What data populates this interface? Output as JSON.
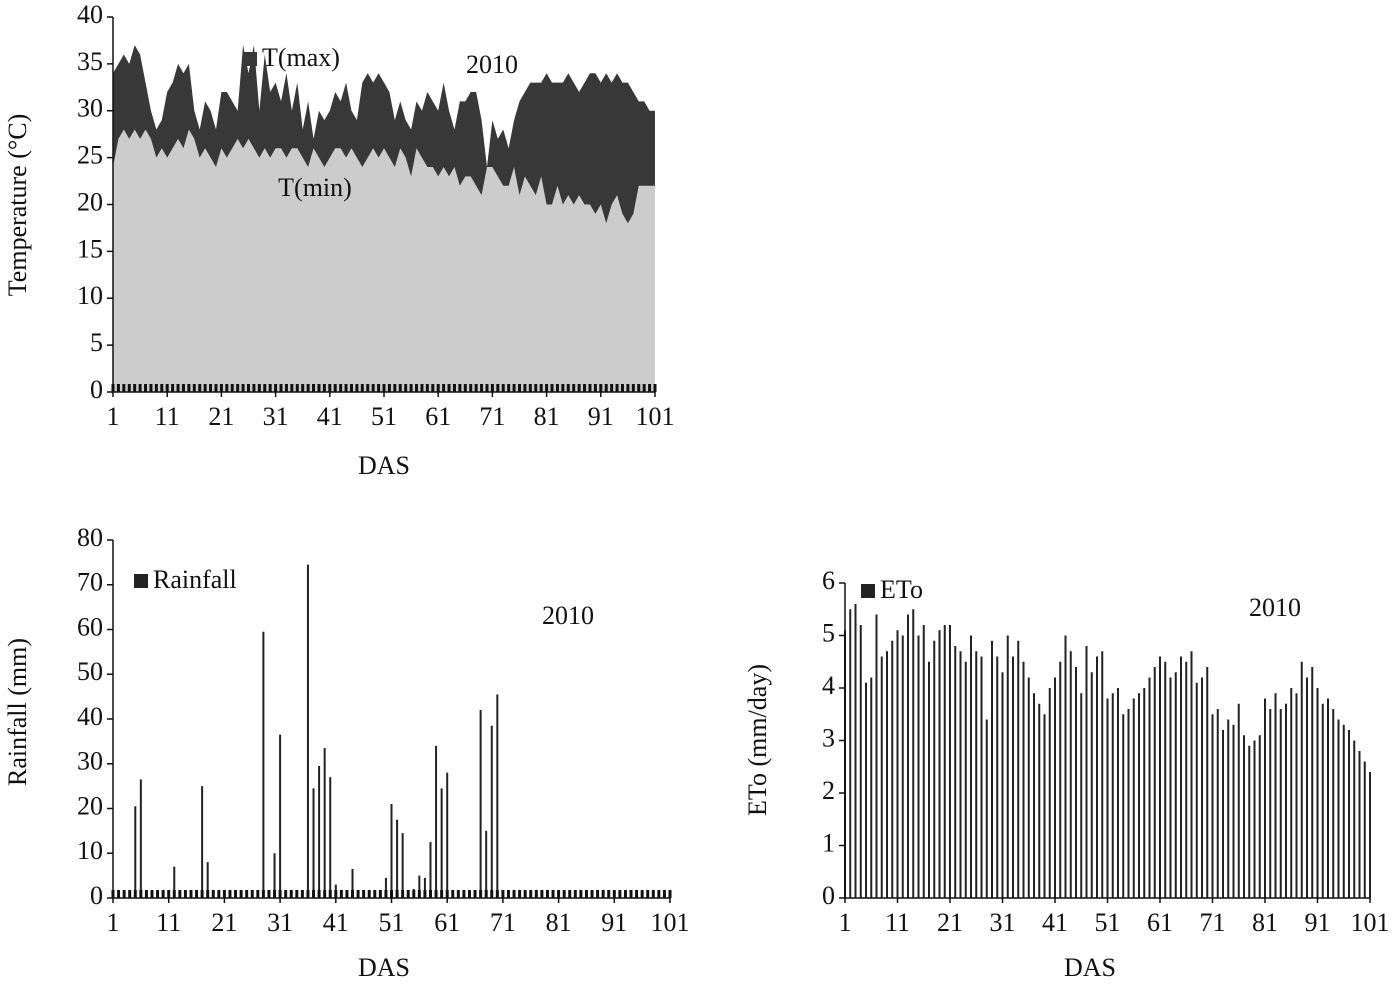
{
  "chart_data": [
    {
      "type": "area",
      "annotation": "2010",
      "xlabel": "DAS",
      "ylabel": "Temperature (°C)",
      "xlim": [
        1,
        101
      ],
      "ylim": [
        0,
        40
      ],
      "xticks": [
        1,
        11,
        21,
        31,
        41,
        51,
        61,
        71,
        81,
        91,
        101
      ],
      "yticks": [
        0,
        5,
        10,
        15,
        20,
        25,
        30,
        35,
        40
      ],
      "x": [
        1,
        2,
        3,
        4,
        5,
        6,
        7,
        8,
        9,
        10,
        11,
        12,
        13,
        14,
        15,
        16,
        17,
        18,
        19,
        20,
        21,
        22,
        23,
        24,
        25,
        26,
        27,
        28,
        29,
        30,
        31,
        32,
        33,
        34,
        35,
        36,
        37,
        38,
        39,
        40,
        41,
        42,
        43,
        44,
        45,
        46,
        47,
        48,
        49,
        50,
        51,
        52,
        53,
        54,
        55,
        56,
        57,
        58,
        59,
        60,
        61,
        62,
        63,
        64,
        65,
        66,
        67,
        68,
        69,
        70,
        71,
        72,
        73,
        74,
        75,
        76,
        77,
        78,
        79,
        80,
        81,
        82,
        83,
        84,
        85,
        86,
        87,
        88,
        89,
        90,
        91,
        92,
        93,
        94,
        95,
        96,
        97,
        98,
        99,
        100,
        101
      ],
      "series": [
        {
          "name": "T(max)",
          "color": "#383838",
          "values": [
            34,
            35,
            36,
            35,
            37,
            36,
            33,
            30,
            28,
            29,
            32,
            33,
            35,
            34,
            35,
            30,
            28,
            31,
            30,
            28,
            32,
            32,
            31,
            30,
            37,
            34,
            37,
            30,
            36,
            32,
            33,
            31,
            34,
            30,
            33,
            28,
            31,
            27,
            30,
            29,
            30,
            32,
            31,
            33,
            30,
            29,
            33,
            34,
            33,
            34,
            33,
            32,
            29,
            31,
            29,
            28,
            31,
            30,
            32,
            31,
            30,
            33,
            30,
            28,
            31,
            31,
            32,
            32,
            29,
            24,
            29,
            27,
            28,
            26,
            29,
            31,
            32,
            33,
            33,
            33,
            34,
            33,
            33,
            33,
            34,
            33,
            32,
            33,
            34,
            34,
            33,
            34,
            33,
            34,
            33,
            33,
            32,
            31,
            31,
            30,
            30
          ]
        },
        {
          "name": "T(min)",
          "color": "#cccccc",
          "values": [
            24,
            27,
            28,
            27,
            28,
            27,
            28,
            27,
            25,
            26,
            25,
            26,
            27,
            26,
            28,
            27,
            25,
            26,
            25,
            24,
            26,
            25,
            26,
            27,
            26,
            27,
            26,
            25,
            26,
            25,
            26,
            26,
            25,
            26,
            26,
            25,
            24,
            26,
            25,
            24,
            25,
            26,
            26,
            25,
            26,
            25,
            24,
            25,
            26,
            25,
            26,
            25,
            24,
            26,
            25,
            23,
            26,
            25,
            24,
            24,
            23,
            24,
            23,
            24,
            22,
            23,
            23,
            22,
            21,
            24,
            24,
            23,
            22,
            22,
            24,
            21,
            23,
            22,
            21,
            23,
            20,
            20,
            22,
            20,
            21,
            20,
            21,
            20,
            20,
            19,
            20,
            18,
            20,
            21,
            19,
            18,
            19,
            22,
            22,
            22,
            22
          ]
        }
      ]
    },
    {
      "type": "bar",
      "annotation": "2010",
      "xlabel": "DAS",
      "ylabel": "Rainfall (mm)",
      "xlim": [
        1,
        101
      ],
      "ylim": [
        0,
        80
      ],
      "xticks": [
        1,
        11,
        21,
        31,
        41,
        51,
        61,
        71,
        81,
        91,
        101
      ],
      "yticks": [
        0,
        10,
        20,
        30,
        40,
        50,
        60,
        70,
        80
      ],
      "x": [
        1,
        2,
        3,
        4,
        5,
        6,
        7,
        8,
        9,
        10,
        11,
        12,
        13,
        14,
        15,
        16,
        17,
        18,
        19,
        20,
        21,
        22,
        23,
        24,
        25,
        26,
        27,
        28,
        29,
        30,
        31,
        32,
        33,
        34,
        35,
        36,
        37,
        38,
        39,
        40,
        41,
        42,
        43,
        44,
        45,
        46,
        47,
        48,
        49,
        50,
        51,
        52,
        53,
        54,
        55,
        56,
        57,
        58,
        59,
        60,
        61,
        62,
        63,
        64,
        65,
        66,
        67,
        68,
        69,
        70,
        71,
        72,
        73,
        74,
        75,
        76,
        77,
        78,
        79,
        80,
        81,
        82,
        83,
        84,
        85,
        86,
        87,
        88,
        89,
        90,
        91,
        92,
        93,
        94,
        95,
        96,
        97,
        98,
        99,
        100,
        101
      ],
      "series": [
        {
          "name": "Rainfall",
          "color": "#222222",
          "values": [
            0,
            0,
            0,
            0,
            20.5,
            26.5,
            0,
            0,
            0,
            0,
            0,
            7,
            0,
            0,
            0,
            0,
            25,
            8,
            0,
            0,
            0,
            0,
            0,
            0,
            0,
            0,
            0,
            59.5,
            0,
            10,
            36.5,
            0,
            0,
            0,
            0,
            74.5,
            24.5,
            29.5,
            33.5,
            27,
            3,
            0,
            0,
            6.5,
            0,
            0,
            0,
            0,
            0,
            4.5,
            21,
            17.5,
            14.5,
            0,
            2,
            5,
            4.5,
            12.5,
            34,
            24.5,
            28,
            0,
            0,
            0,
            0,
            0,
            42,
            15,
            38.5,
            45.5,
            0,
            0,
            0,
            0,
            0,
            0,
            0,
            0,
            0,
            0,
            0,
            0,
            0,
            0,
            0,
            0,
            0,
            0,
            0,
            0,
            0,
            0,
            0,
            0,
            0,
            0,
            0,
            0,
            0,
            0,
            0
          ]
        }
      ]
    },
    {
      "type": "bar",
      "annotation": "2010",
      "xlabel": "DAS",
      "ylabel": "ETo (mm/day)",
      "xlim": [
        1,
        101
      ],
      "ylim": [
        0,
        6
      ],
      "xticks": [
        1,
        11,
        21,
        31,
        41,
        51,
        61,
        71,
        81,
        91,
        101
      ],
      "yticks": [
        0,
        1,
        2,
        3,
        4,
        5,
        6
      ],
      "x": [
        1,
        2,
        3,
        4,
        5,
        6,
        7,
        8,
        9,
        10,
        11,
        12,
        13,
        14,
        15,
        16,
        17,
        18,
        19,
        20,
        21,
        22,
        23,
        24,
        25,
        26,
        27,
        28,
        29,
        30,
        31,
        32,
        33,
        34,
        35,
        36,
        37,
        38,
        39,
        40,
        41,
        42,
        43,
        44,
        45,
        46,
        47,
        48,
        49,
        50,
        51,
        52,
        53,
        54,
        55,
        56,
        57,
        58,
        59,
        60,
        61,
        62,
        63,
        64,
        65,
        66,
        67,
        68,
        69,
        70,
        71,
        72,
        73,
        74,
        75,
        76,
        77,
        78,
        79,
        80,
        81,
        82,
        83,
        84,
        85,
        86,
        87,
        88,
        89,
        90,
        91,
        92,
        93,
        94,
        95,
        96,
        97,
        98,
        99,
        100,
        101
      ],
      "series": [
        {
          "name": "ETo",
          "color": "#222222",
          "values": [
            5.1,
            5.5,
            5.6,
            5.2,
            4.1,
            4.2,
            5.4,
            4.6,
            4.7,
            4.9,
            5.1,
            5.0,
            5.4,
            5.5,
            5.0,
            5.2,
            4.5,
            4.9,
            5.1,
            5.2,
            5.2,
            4.8,
            4.7,
            4.5,
            5.0,
            4.7,
            4.6,
            3.4,
            4.9,
            4.6,
            4.3,
            5.0,
            4.6,
            4.9,
            4.5,
            4.2,
            3.9,
            3.7,
            3.5,
            4.0,
            4.2,
            4.5,
            5.0,
            4.7,
            4.4,
            3.9,
            4.8,
            4.3,
            4.6,
            4.7,
            3.8,
            3.9,
            4.0,
            3.5,
            3.6,
            3.8,
            3.9,
            4.0,
            4.2,
            4.4,
            4.6,
            4.5,
            4.2,
            4.3,
            4.6,
            4.5,
            4.7,
            4.1,
            4.2,
            4.4,
            3.5,
            3.6,
            3.2,
            3.4,
            3.3,
            3.7,
            3.1,
            2.9,
            3.0,
            3.1,
            3.8,
            3.6,
            3.9,
            3.6,
            3.7,
            4.0,
            3.9,
            4.5,
            4.2,
            4.4,
            4.0,
            3.7,
            3.8,
            3.6,
            3.4,
            3.3,
            3.2,
            3.0,
            2.8,
            2.6,
            2.4
          ]
        }
      ]
    }
  ]
}
